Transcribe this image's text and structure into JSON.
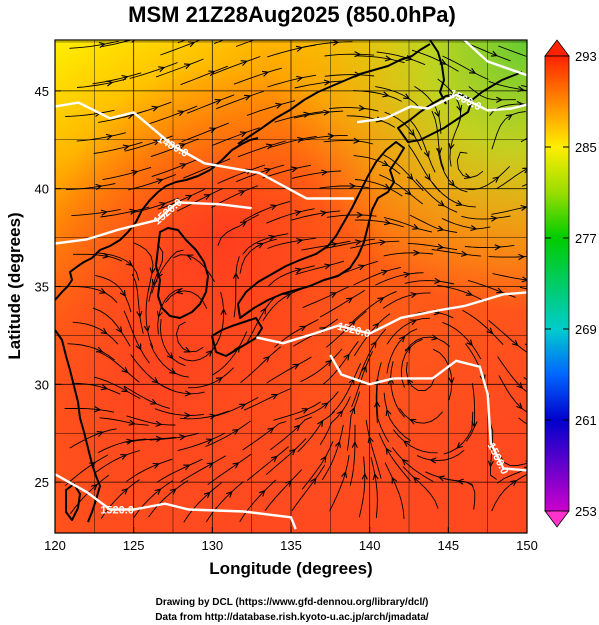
{
  "title": "MSM 21Z28Aug2025 (850.0hPa)",
  "xlabel": "Longitude (degrees)",
  "ylabel": "Latitude  (degrees)",
  "credits": [
    "Drawing by DCL (https://www.gfd-dennou.org/library/dcl/)",
    "Data from http://database.rish.kyoto-u.ac.jp/arch/jmadata/"
  ],
  "x_ticks": [
    "120",
    "125",
    "130",
    "135",
    "140",
    "145",
    "150"
  ],
  "y_ticks": [
    "25",
    "30",
    "35",
    "40",
    "45"
  ],
  "colorbar": {
    "ticks": [
      "293",
      "285",
      "277",
      "269",
      "261",
      "253"
    ],
    "stops": [
      {
        "value": 253,
        "color": "#cc00cc"
      },
      {
        "value": 257,
        "color": "#6600cc"
      },
      {
        "value": 261,
        "color": "#0000cc"
      },
      {
        "value": 265,
        "color": "#0066ff"
      },
      {
        "value": 269,
        "color": "#00cccc"
      },
      {
        "value": 273,
        "color": "#00cc66"
      },
      {
        "value": 277,
        "color": "#00cc00"
      },
      {
        "value": 281,
        "color": "#99dd00"
      },
      {
        "value": 285,
        "color": "#ffee00"
      },
      {
        "value": 289,
        "color": "#ff8800"
      },
      {
        "value": 293,
        "color": "#ff2200"
      }
    ]
  },
  "chart_data": {
    "type": "heatmap",
    "title": "MSM 21Z28Aug2025 (850.0hPa)",
    "xlabel": "Longitude (degrees)",
    "ylabel": "Latitude  (degrees)",
    "xlim": [
      120,
      150
    ],
    "ylim": [
      22.4,
      47.6
    ],
    "x_ticks": [
      120,
      125,
      130,
      135,
      140,
      145,
      150
    ],
    "y_ticks": [
      25,
      30,
      35,
      40,
      45
    ],
    "colorbar_range": [
      253,
      293
    ],
    "shaded_field": "temperature (K)",
    "overlays": [
      "wind streamlines",
      "geopotential height contours",
      "coastlines"
    ],
    "contour_labels": [
      "1480.0",
      "1520.0",
      "1560.0",
      "1520.0",
      "1560.0",
      "1520.0"
    ],
    "contours": [
      {
        "level": 1480,
        "points": [
          [
            146,
            47.6
          ],
          [
            147.5,
            46.5
          ],
          [
            150,
            45.8
          ]
        ]
      },
      {
        "level": 1520,
        "points": [
          [
            120,
            44.2
          ],
          [
            121.5,
            44.4
          ],
          [
            123.5,
            43.6
          ],
          [
            125,
            43.9
          ],
          [
            127.5,
            42.2
          ],
          [
            129.5,
            41.3
          ],
          [
            133,
            40.8
          ],
          [
            136,
            39.5
          ],
          [
            139,
            39.5
          ]
        ]
      },
      {
        "level": 1520,
        "points": [
          [
            120,
            37.2
          ],
          [
            122,
            37.4
          ],
          [
            124,
            37.9
          ],
          [
            126.5,
            38.4
          ],
          [
            127.8,
            39.3
          ],
          [
            130.5,
            39.2
          ],
          [
            132.5,
            39.0
          ]
        ]
      },
      {
        "level": 1520,
        "points": [
          [
            139.2,
            43.4
          ],
          [
            141,
            43.6
          ],
          [
            142.6,
            44.2
          ],
          [
            143.7,
            44.1
          ],
          [
            145.5,
            44.8
          ],
          [
            147.5,
            44.0
          ],
          [
            149,
            44.1
          ],
          [
            150,
            44.3
          ]
        ]
      },
      {
        "level": 1560,
        "points": [
          [
            132.8,
            32.4
          ],
          [
            134.5,
            32.1
          ],
          [
            136.5,
            32.6
          ],
          [
            138,
            33.0
          ],
          [
            140,
            32.6
          ],
          [
            142,
            33.4
          ],
          [
            144.5,
            33.8
          ],
          [
            146,
            34.0
          ],
          [
            148.5,
            34.6
          ],
          [
            150,
            34.7
          ]
        ]
      },
      {
        "level": 1560,
        "points": [
          [
            141.5,
            30.3
          ],
          [
            144,
            30.3
          ],
          [
            145.5,
            31.2
          ],
          [
            147,
            30.9
          ],
          [
            147.5,
            29.5
          ],
          [
            147.7,
            27.0
          ],
          [
            148.5,
            25.7
          ],
          [
            150,
            25.6
          ]
        ]
      },
      {
        "level": 1560,
        "points": [
          [
            137.5,
            31.5
          ],
          [
            138.2,
            30.5
          ],
          [
            140,
            30.0
          ],
          [
            141.5,
            30.3
          ]
        ]
      },
      {
        "level": 1520,
        "points": [
          [
            120,
            25.4
          ],
          [
            122,
            24.5
          ],
          [
            123.5,
            23.6
          ],
          [
            125,
            23.6
          ],
          [
            127,
            23.9
          ],
          [
            128.5,
            23.6
          ],
          [
            132,
            23.5
          ],
          [
            135,
            23.2
          ],
          [
            135.3,
            22.6
          ]
        ]
      }
    ],
    "pressure_level_hPa": 850.0,
    "valid_time": "21Z28Aug2025"
  }
}
